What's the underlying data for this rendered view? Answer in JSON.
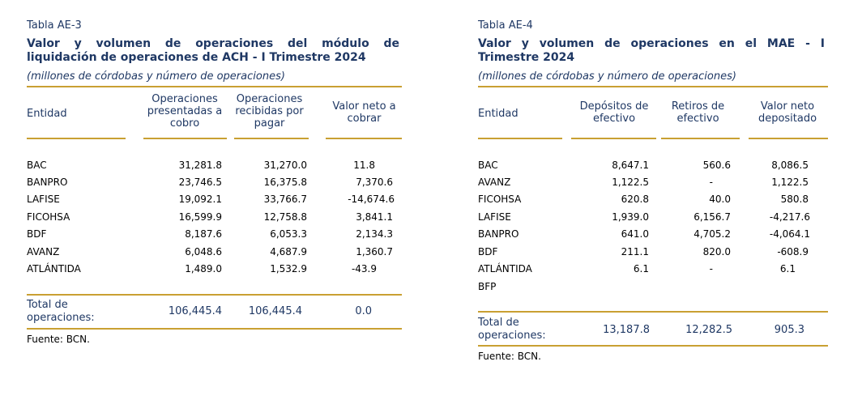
{
  "left": {
    "tag": "Tabla AE-3",
    "title": "Valor y volumen de operaciones del módulo de liquidación de operaciones de ACH - I Trimestre 2024",
    "subtitle": "(millones de córdobas y número de operaciones)",
    "headers": {
      "entidad": "Entidad",
      "col1": "Operaciones presentadas a cobro",
      "col2": "Operaciones recibidas por pagar",
      "col3": "Valor neto a cobrar"
    },
    "rows": [
      {
        "entidad": "BAC",
        "c1": "31,281.8",
        "c2": "31,270.0",
        "c3": "11.8"
      },
      {
        "entidad": "BANPRO",
        "c1": "23,746.5",
        "c2": "16,375.8",
        "c3": "7,370.6"
      },
      {
        "entidad": "LAFISE",
        "c1": "19,092.1",
        "c2": "33,766.7",
        "c3": "-14,674.6"
      },
      {
        "entidad": "FICOHSA",
        "c1": "16,599.9",
        "c2": "12,758.8",
        "c3": "3,841.1"
      },
      {
        "entidad": "BDF",
        "c1": "8,187.6",
        "c2": "6,053.3",
        "c3": "2,134.3"
      },
      {
        "entidad": "AVANZ",
        "c1": "6,048.6",
        "c2": "4,687.9",
        "c3": "1,360.7"
      },
      {
        "entidad": "ATLÁNTIDA",
        "c1": "1,489.0",
        "c2": "1,532.9",
        "c3": "-43.9"
      }
    ],
    "total": {
      "label": "Total de operaciones:",
      "c1": "106,445.4",
      "c2": "106,445.4",
      "c3": "0.0"
    },
    "source": "Fuente: BCN."
  },
  "right": {
    "tag": "Tabla AE-4",
    "title": "Valor y volumen de operaciones en el MAE - I Trimestre 2024",
    "subtitle": "(millones de córdobas y número de operaciones)",
    "headers": {
      "entidad": "Entidad",
      "col1": "Depósitos de efectivo",
      "col2": "Retiros de efectivo",
      "col3": "Valor neto depositado"
    },
    "rows": [
      {
        "entidad": "BAC",
        "c1": "8,647.1",
        "c2": "560.6",
        "c3": "8,086.5"
      },
      {
        "entidad": "AVANZ",
        "c1": "1,122.5",
        "c2": "-",
        "c3": "1,122.5"
      },
      {
        "entidad": "FICOHSA",
        "c1": "620.8",
        "c2": "40.0",
        "c3": "580.8"
      },
      {
        "entidad": "LAFISE",
        "c1": "1,939.0",
        "c2": "6,156.7",
        "c3": "-4,217.6"
      },
      {
        "entidad": "BANPRO",
        "c1": "641.0",
        "c2": "4,705.2",
        "c3": "-4,064.1"
      },
      {
        "entidad": "BDF",
        "c1": "211.1",
        "c2": "820.0",
        "c3": "-608.9"
      },
      {
        "entidad": "ATLÁNTIDA",
        "c1": "6.1",
        "c2": "-",
        "c3": "6.1"
      },
      {
        "entidad": "BFP",
        "c1": "",
        "c2": "",
        "c3": ""
      }
    ],
    "total": {
      "label": "Total de operaciones:",
      "c1": "13,187.8",
      "c2": "12,282.5",
      "c3": "905.3"
    },
    "source": "Fuente: BCN."
  }
}
